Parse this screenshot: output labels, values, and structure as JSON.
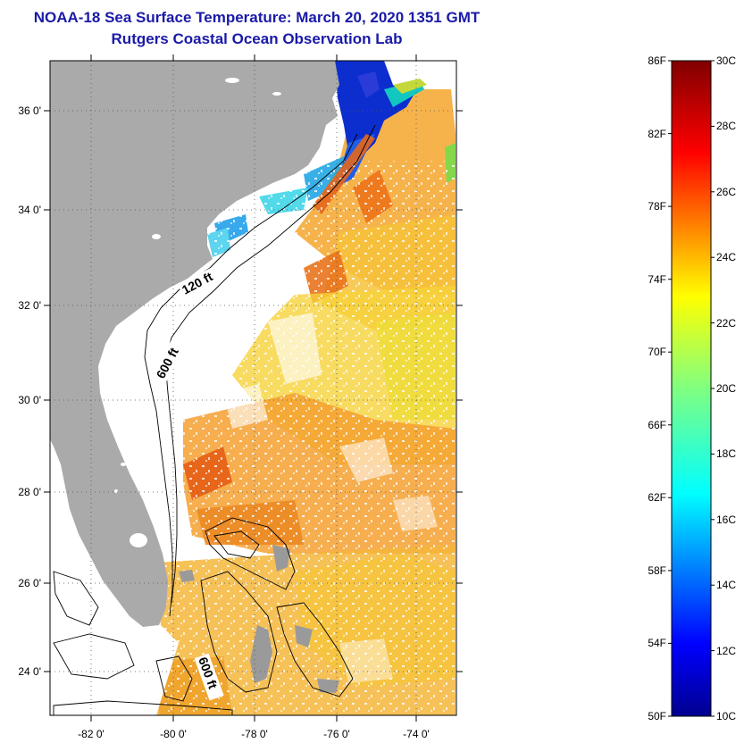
{
  "header": {
    "title": "NOAA-18 Sea Surface Temperature:  March 20, 2020 1351 GMT",
    "subtitle": "Rutgers Coastal Ocean Observation Lab"
  },
  "map": {
    "lon_ticks": [
      "-82 0'",
      "-80 0'",
      "-78 0'",
      "-76 0'",
      "-74 0'"
    ],
    "lat_ticks": [
      "36 0'",
      "34 0'",
      "32 0'",
      "30 0'",
      "28 0'",
      "26 0'",
      "24 0'"
    ],
    "contour_labels": [
      "120 ft",
      "600 ft",
      "600 ft"
    ],
    "land_color": "#aaaaaa"
  },
  "colorbar": {
    "f_labels": [
      "86F",
      "82F",
      "78F",
      "74F",
      "70F",
      "66F",
      "62F",
      "58F",
      "54F",
      "50F"
    ],
    "c_labels": [
      "30C",
      "28C",
      "26C",
      "24C",
      "22C",
      "20C",
      "18C",
      "16C",
      "14C",
      "12C",
      "10C"
    ],
    "colormap": "jet"
  }
}
